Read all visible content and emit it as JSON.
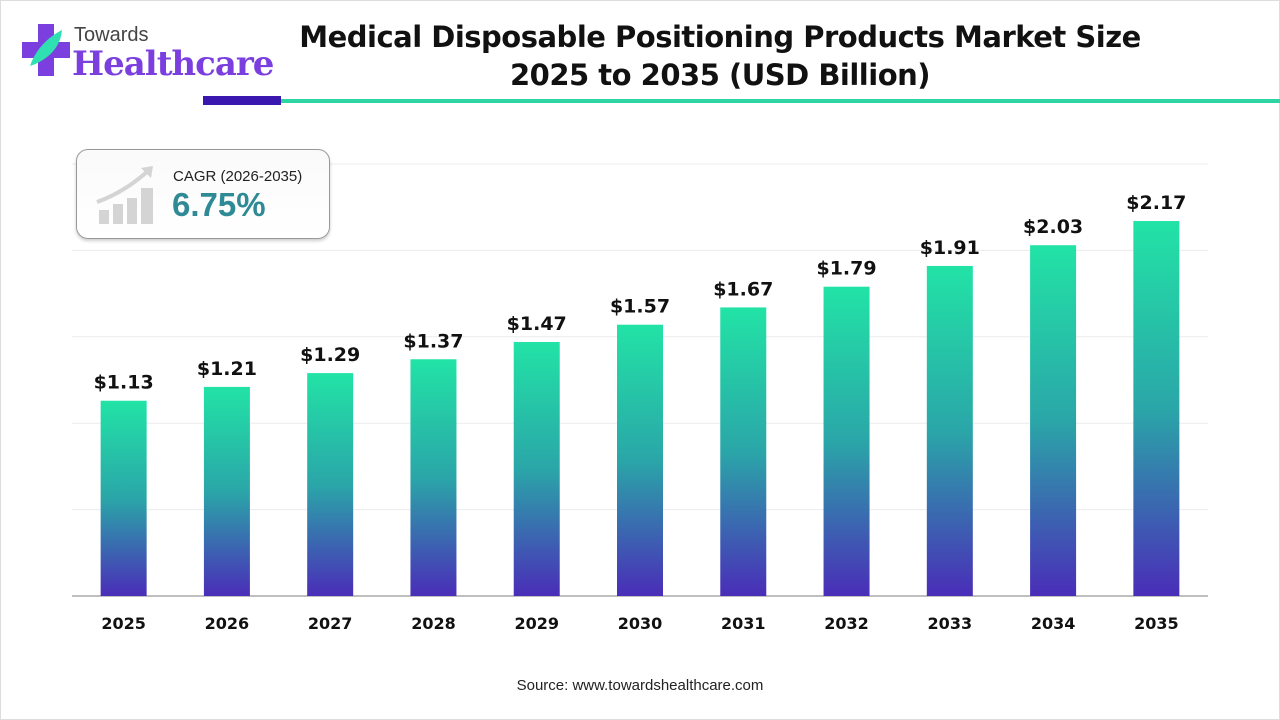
{
  "brand": {
    "line1": "Towards",
    "line2": "Healthcare"
  },
  "title_lines": [
    "Medical Disposable Positioning Products Market Size",
    "2025 to 2035 (USD Billion)"
  ],
  "cagr": {
    "label": "CAGR (2026-2035)",
    "value": "6.75%"
  },
  "source": "Source: www.towardshealthcare.com",
  "colors": {
    "bar_top": "#22e3a6",
    "bar_bottom": "#4a2db8",
    "accent_dark": "#3a18b0",
    "accent_teal": "#2fd4a4",
    "cagr_value": "#2e8a95"
  },
  "chart_data": {
    "type": "bar",
    "title": "Medical Disposable Positioning Products Market Size 2025 to 2035 (USD Billion)",
    "categories": [
      "2025",
      "2026",
      "2027",
      "2028",
      "2029",
      "2030",
      "2031",
      "2032",
      "2033",
      "2034",
      "2035"
    ],
    "values": [
      1.13,
      1.21,
      1.29,
      1.37,
      1.47,
      1.57,
      1.67,
      1.79,
      1.91,
      2.03,
      2.17
    ],
    "data_labels": [
      "$1.13",
      "$1.21",
      "$1.29",
      "$1.37",
      "$1.47",
      "$1.57",
      "$1.67",
      "$1.79",
      "$1.91",
      "$2.03",
      "$2.17"
    ],
    "ylim": [
      0,
      2.5
    ],
    "grid": true,
    "xlabel": "",
    "ylabel": ""
  }
}
